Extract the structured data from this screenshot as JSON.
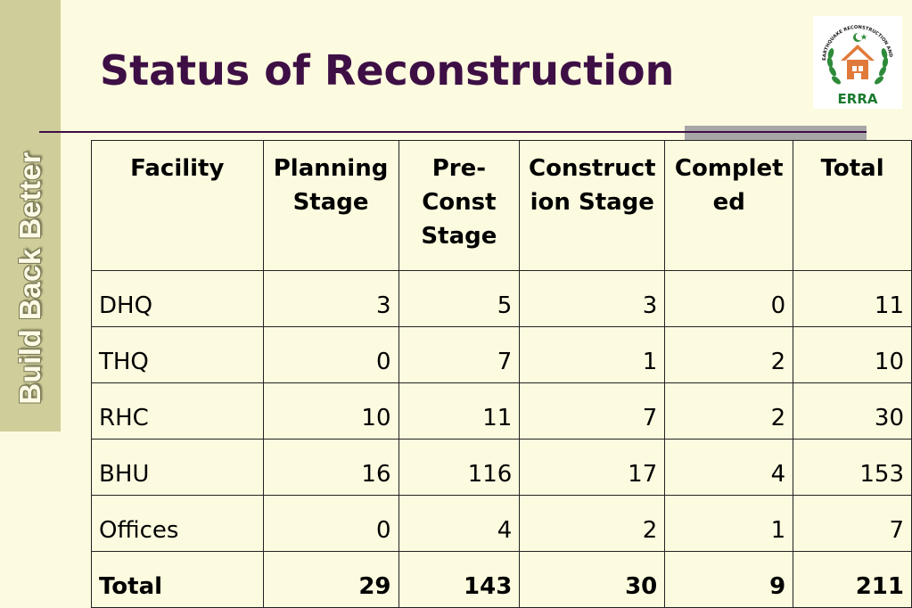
{
  "sidebar": {
    "text": "Build Back Better"
  },
  "title": "Status of Reconstruction",
  "logo": {
    "arc_text": "EARTHQUAKE RECONSTRUCTION AND REHABILITATION AUTHORITY",
    "label": "ERRA",
    "colors": {
      "house": "#e07a3a",
      "wreath": "#2e8b3a",
      "label": "#1b7a2e"
    }
  },
  "table": {
    "headers": [
      "Facility",
      "Planning Stage",
      "Pre-Const Stage",
      "Construction Stage",
      "Completed",
      "Total"
    ],
    "header_lines": [
      [
        "Facility"
      ],
      [
        "Planning",
        "Stage"
      ],
      [
        "Pre-",
        "Const",
        "Stage"
      ],
      [
        "Construct",
        "ion Stage"
      ],
      [
        "Complet",
        "ed"
      ],
      [
        "Total"
      ]
    ],
    "rows": [
      [
        "DHQ",
        "3",
        "5",
        "3",
        "0",
        "11"
      ],
      [
        "THQ",
        "0",
        "7",
        "1",
        "2",
        "10"
      ],
      [
        "RHC",
        "10",
        "11",
        "7",
        "2",
        "30"
      ],
      [
        "BHU",
        "16",
        "116",
        "17",
        "4",
        "153"
      ],
      [
        "Offices",
        "0",
        "4",
        "2",
        "1",
        "7"
      ]
    ],
    "total_row": [
      "Total",
      "29",
      "143",
      "30",
      "9",
      "211"
    ]
  }
}
